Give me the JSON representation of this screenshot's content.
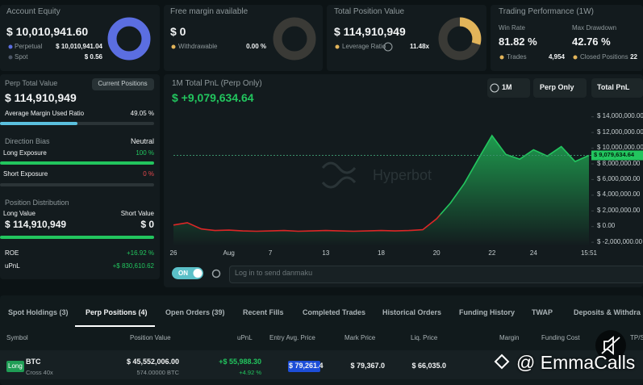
{
  "cards": [
    {
      "title": "Account Equity",
      "value": "$ 10,010,941.60",
      "rows": [
        {
          "label": "Perpetual",
          "value": "$ 10,010,941.04"
        },
        {
          "label": "Spot",
          "value": "$ 0.56"
        }
      ]
    },
    {
      "title": "Free margin available",
      "value": "$ 0",
      "rows": [
        {
          "label": "Withdrawable",
          "value": "0.00 %"
        }
      ]
    },
    {
      "title": "Total Position Value",
      "value": "$ 114,910,949",
      "rows": [
        {
          "label": "Leverage Ratio",
          "value": "11.48x"
        }
      ]
    }
  ],
  "performance": {
    "title": "Trading Performance (1W)",
    "stats": [
      {
        "label": "Win Rate",
        "value": "81.82 %",
        "sub_label": "Trades",
        "sub_value": "4,954"
      },
      {
        "label": "Max Drawdown",
        "value": "42.76 %",
        "sub_label": "Closed Positions",
        "sub_value": "22"
      }
    ]
  },
  "perp": {
    "title": "Perp Total Value",
    "button": "Current Positions",
    "value": "$ 114,910,949",
    "margin_label": "Average Margin Used Ratio",
    "margin_value": "49.05 %",
    "bias_title": "Direction Bias",
    "bias_value": "Neutral",
    "long_label": "Long Exposure",
    "long_value": "100 %",
    "short_label": "Short Exposure",
    "short_value": "0 %",
    "dist_title": "Position Distribution",
    "long_value_label": "Long Value",
    "short_value_label": "Short Value",
    "long_amount": "$ 114,910,949",
    "short_amount": "$ 0",
    "roe_label": "ROE",
    "roe_value": "+16.92 %",
    "upnl_label": "uPnL",
    "upnl_value": "+$ 830,610.62"
  },
  "pnl": {
    "title": "1M Total PnL (Perp Only)",
    "value": "$ +9,079,634.64",
    "controls": [
      "1M",
      "Perp Only",
      "Total PnL"
    ],
    "watermark": "Hyperbot",
    "toggle": "ON",
    "input_placeholder": "Log in to send danmaku",
    "chart_data": {
      "type": "line",
      "categories": [
        "26",
        null,
        null,
        null,
        "Aug",
        null,
        null,
        "7",
        null,
        null,
        null,
        "13",
        null,
        null,
        null,
        "18",
        null,
        null,
        null,
        "20",
        null,
        null,
        null,
        "22",
        null,
        null,
        "24",
        null,
        null,
        null,
        "15:51"
      ],
      "values": [
        200000,
        500000,
        -300000,
        -500000,
        -450000,
        -550000,
        -600000,
        -550000,
        -500000,
        -600000,
        -550000,
        -500000,
        -550000,
        -600000,
        -550000,
        -500000,
        -550000,
        -500000,
        -400000,
        1000000,
        3000000,
        5500000,
        8600000,
        11600000,
        9200000,
        8600000,
        9800000,
        9000000,
        10200000,
        8300000,
        9079634.64
      ],
      "current_label": "$ 9,079,634.64",
      "ylim": [
        -2500000,
        15000000
      ],
      "yticks": [
        {
          "value": 14000000,
          "label": "$ 14,000,000.00"
        },
        {
          "value": 12000000,
          "label": "$ 12,000,000.00"
        },
        {
          "value": 10000000,
          "label": "$ 10,000,000.00"
        },
        {
          "value": 8000000,
          "label": "$ 8,000,000.00"
        },
        {
          "value": 6000000,
          "label": "$ 6,000,000.00"
        },
        {
          "value": 4000000,
          "label": "$ 4,000,000.00"
        },
        {
          "value": 2000000,
          "label": "$ 2,000,000.00"
        },
        {
          "value": 0,
          "label": "$ 0.00"
        },
        {
          "value": -2000000,
          "label": "$ -2,000,000.00"
        }
      ]
    }
  },
  "tabs": [
    "Spot Holdings (3)",
    "Perp Positions (4)",
    "Open Orders (39)",
    "Recent Fills",
    "Completed Trades",
    "Historical Orders",
    "Funding History",
    "TWAP",
    "Deposits & Withdra"
  ],
  "table": {
    "columns": [
      "Symbol",
      "Position Value",
      "uPnL",
      "Entry Avg. Price",
      "Mark Price",
      "Liq. Price",
      "Margin",
      "Funding Cost",
      "TP/S"
    ],
    "rows": [
      {
        "side": "Long",
        "symbol": "BTC",
        "mode": "Cross 40x",
        "position_value": "$ 45,552,006.00",
        "size": "574.00000 BTC",
        "upnl": "+$ 55,988.30",
        "upnl_pct": "+4.92 %",
        "entry": "$ 79,261.4",
        "mark": "$ 79,367.0",
        "liq": "$ 66,035.0"
      }
    ]
  },
  "overlay": "@ EmmaCalls"
}
